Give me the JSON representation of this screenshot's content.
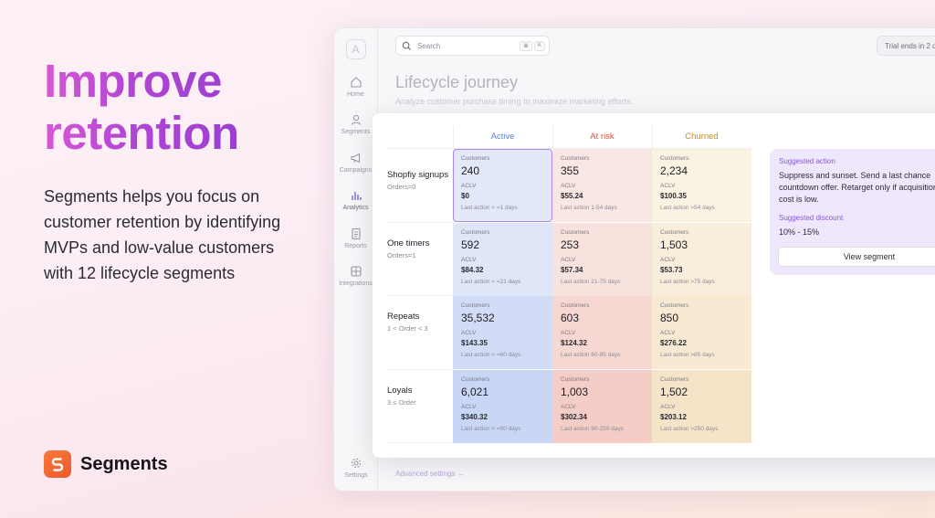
{
  "hero": {
    "title_line1": "Improve",
    "title_line2": "retention",
    "body_lines": [
      "Segments helps you focus on",
      "customer retention by identifying",
      "MVPs and low-value customers",
      "with 12 lifecycle segments"
    ]
  },
  "brand": {
    "name": "Segments",
    "logo_icon": "segments-logo-icon",
    "color": "#f06a32"
  },
  "app": {
    "logo_letter": "A",
    "nav": [
      {
        "label": "Home",
        "icon": "home-icon"
      },
      {
        "label": "Segments",
        "icon": "user-icon"
      },
      {
        "label": "Campaigns",
        "icon": "megaphone-icon"
      },
      {
        "label": "Analytics",
        "icon": "bar-chart-icon",
        "active": true
      },
      {
        "label": "Reports",
        "icon": "document-icon"
      },
      {
        "label": "Integrations",
        "icon": "integrations-icon"
      }
    ],
    "settings_label": "Settings",
    "search": {
      "placeholder": "Search",
      "shortcut_keys": [
        "⌘",
        "K"
      ]
    },
    "trial_text": "Trial ends in 2 d",
    "page_title": "Lifecycle journey",
    "page_subtitle": "Analyze customer purchase timing to maximize marketing efforts.",
    "advanced_link": "Advanced settings →"
  },
  "matrix": {
    "columns": [
      {
        "label": "Active",
        "color": "#5b7fe0"
      },
      {
        "label": "At risk",
        "color": "#d9533f"
      },
      {
        "label": "Churned",
        "color": "#c48a2c"
      }
    ],
    "cell_labels": {
      "customers": "Customers",
      "aclv": "ACLV"
    },
    "rows": [
      {
        "name": "Shopfiy signups",
        "sub": "Orders=0",
        "cells": [
          {
            "customers": "240",
            "aclv": "$0",
            "last": "Last action  < =1 days"
          },
          {
            "customers": "355",
            "aclv": "$55.24",
            "last": "Last action  1-54 days"
          },
          {
            "customers": "2,234",
            "aclv": "$100.35",
            "last": "Last action  >54 days"
          }
        ]
      },
      {
        "name": "One timers",
        "sub": "Orders=1",
        "cells": [
          {
            "customers": "592",
            "aclv": "$84.32",
            "last": "Last action  < =21 days"
          },
          {
            "customers": "253",
            "aclv": "$57.34",
            "last": "Last action  21-75 days"
          },
          {
            "customers": "1,503",
            "aclv": "$53.73",
            "last": "Last action  >75 days"
          }
        ]
      },
      {
        "name": "Repeats",
        "sub": "1 < Order < 3",
        "cells": [
          {
            "customers": "35,532",
            "aclv": "$143.35",
            "last": "Last action  < =60 days"
          },
          {
            "customers": "603",
            "aclv": "$124.32",
            "last": "Last action  60-85 days"
          },
          {
            "customers": "850",
            "aclv": "$276.22",
            "last": "Last action  >85 days"
          }
        ]
      },
      {
        "name": "Loyals",
        "sub": "3 ≤ Order",
        "cells": [
          {
            "customers": "6,021",
            "aclv": "$340.32",
            "last": "Last action  < =90 days"
          },
          {
            "customers": "1,003",
            "aclv": "$302.34",
            "last": "Last action  90-250 days"
          },
          {
            "customers": "1,502",
            "aclv": "$203.12",
            "last": "Last action  >250 days"
          }
        ]
      }
    ],
    "cell_colors": [
      [
        "#e3e8f8",
        "#f9e7e3",
        "#fbf3e2"
      ],
      [
        "#dfe6f8",
        "#f8e2de",
        "#f9eedb"
      ],
      [
        "#d3dcf6",
        "#f6d7d2",
        "#f8ead2"
      ],
      [
        "#c9d6f5",
        "#f4cdc6",
        "#f6e4c9"
      ]
    ]
  },
  "suggestion": {
    "title": "Suggested action",
    "body": "Suppress and sunset. Send a last chance countdown offer. Retarget only if acquisition cost is low.",
    "discount_title": "Suggested discount",
    "discount_range": "10% - 15%",
    "button_label": "View segment"
  }
}
